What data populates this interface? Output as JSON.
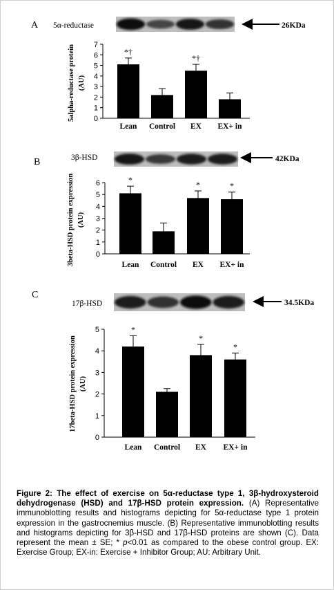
{
  "chart_data": [
    {
      "type": "bar",
      "panel": "A",
      "blot_label": "5α-reductase",
      "band_size": "26KDa",
      "ylabel_line1": "5alpha-reductase protein",
      "ylabel_line2": "(AU)",
      "categories": [
        "Lean",
        "Control",
        "EX",
        "EX+ in"
      ],
      "values": [
        5.1,
        2.2,
        4.5,
        1.8
      ],
      "errors": [
        0.6,
        0.6,
        0.6,
        0.6
      ],
      "annotations": [
        "*†",
        "",
        "*†",
        ""
      ],
      "yticks": [
        "0",
        "1",
        "2",
        "3",
        "4",
        "5",
        "6",
        "7"
      ],
      "ylim": [
        0,
        7
      ]
    },
    {
      "type": "bar",
      "panel": "B",
      "blot_label": "3β-HSD",
      "band_size": "42KDa",
      "ylabel_line1": "3beta-HSD protein expression",
      "ylabel_line2": "(AU)",
      "categories": [
        "Lean",
        "Control",
        "EX",
        "EX+ in"
      ],
      "values": [
        5.1,
        1.9,
        4.7,
        4.6
      ],
      "errors": [
        0.6,
        0.7,
        0.6,
        0.6
      ],
      "annotations": [
        "*",
        "",
        "*",
        "*"
      ],
      "yticks": [
        "0",
        "1",
        "2",
        "3",
        "4",
        "5",
        "6"
      ],
      "ylim": [
        0,
        6
      ]
    },
    {
      "type": "bar",
      "panel": "C",
      "blot_label": "17β-HSD",
      "band_size": "34.5KDa",
      "ylabel_line1": "17beta-HSD protein expression",
      "ylabel_line2": "(AU)",
      "categories": [
        "Lean",
        "Control",
        "EX",
        "EX+ in"
      ],
      "values": [
        4.2,
        2.1,
        3.8,
        3.6
      ],
      "errors": [
        0.5,
        0.15,
        0.5,
        0.3
      ],
      "annotations": [
        "*",
        "",
        "*",
        "*"
      ],
      "yticks": [
        "0",
        "1",
        "2",
        "3",
        "4",
        "5"
      ],
      "ylim": [
        0,
        5
      ]
    }
  ],
  "caption": {
    "figure_label": "Figure 2:",
    "title": "The effect of exercise on 5α-reductase type 1, 3β-hydroxysteroid dehydrogenase (HSD) and 17β-HSD protein expression.",
    "text_1": "(A) Representative immunoblotting results and histograms depicting for 5α-reductase type 1 protein expression in the gastrocnemius muscle. (B) Representative immunoblotting results and histograms depicting for 3β-HSD and 17β-HSD proteins are shown (C). Data represent the mean ± SE; *",
    "p_italic": "p",
    "text_2": "<0.01 as compared to the obese control group. EX: Exercise Group; EX-in: Exercise + Inhibitor Group; AU: Arbitrary Unit."
  }
}
